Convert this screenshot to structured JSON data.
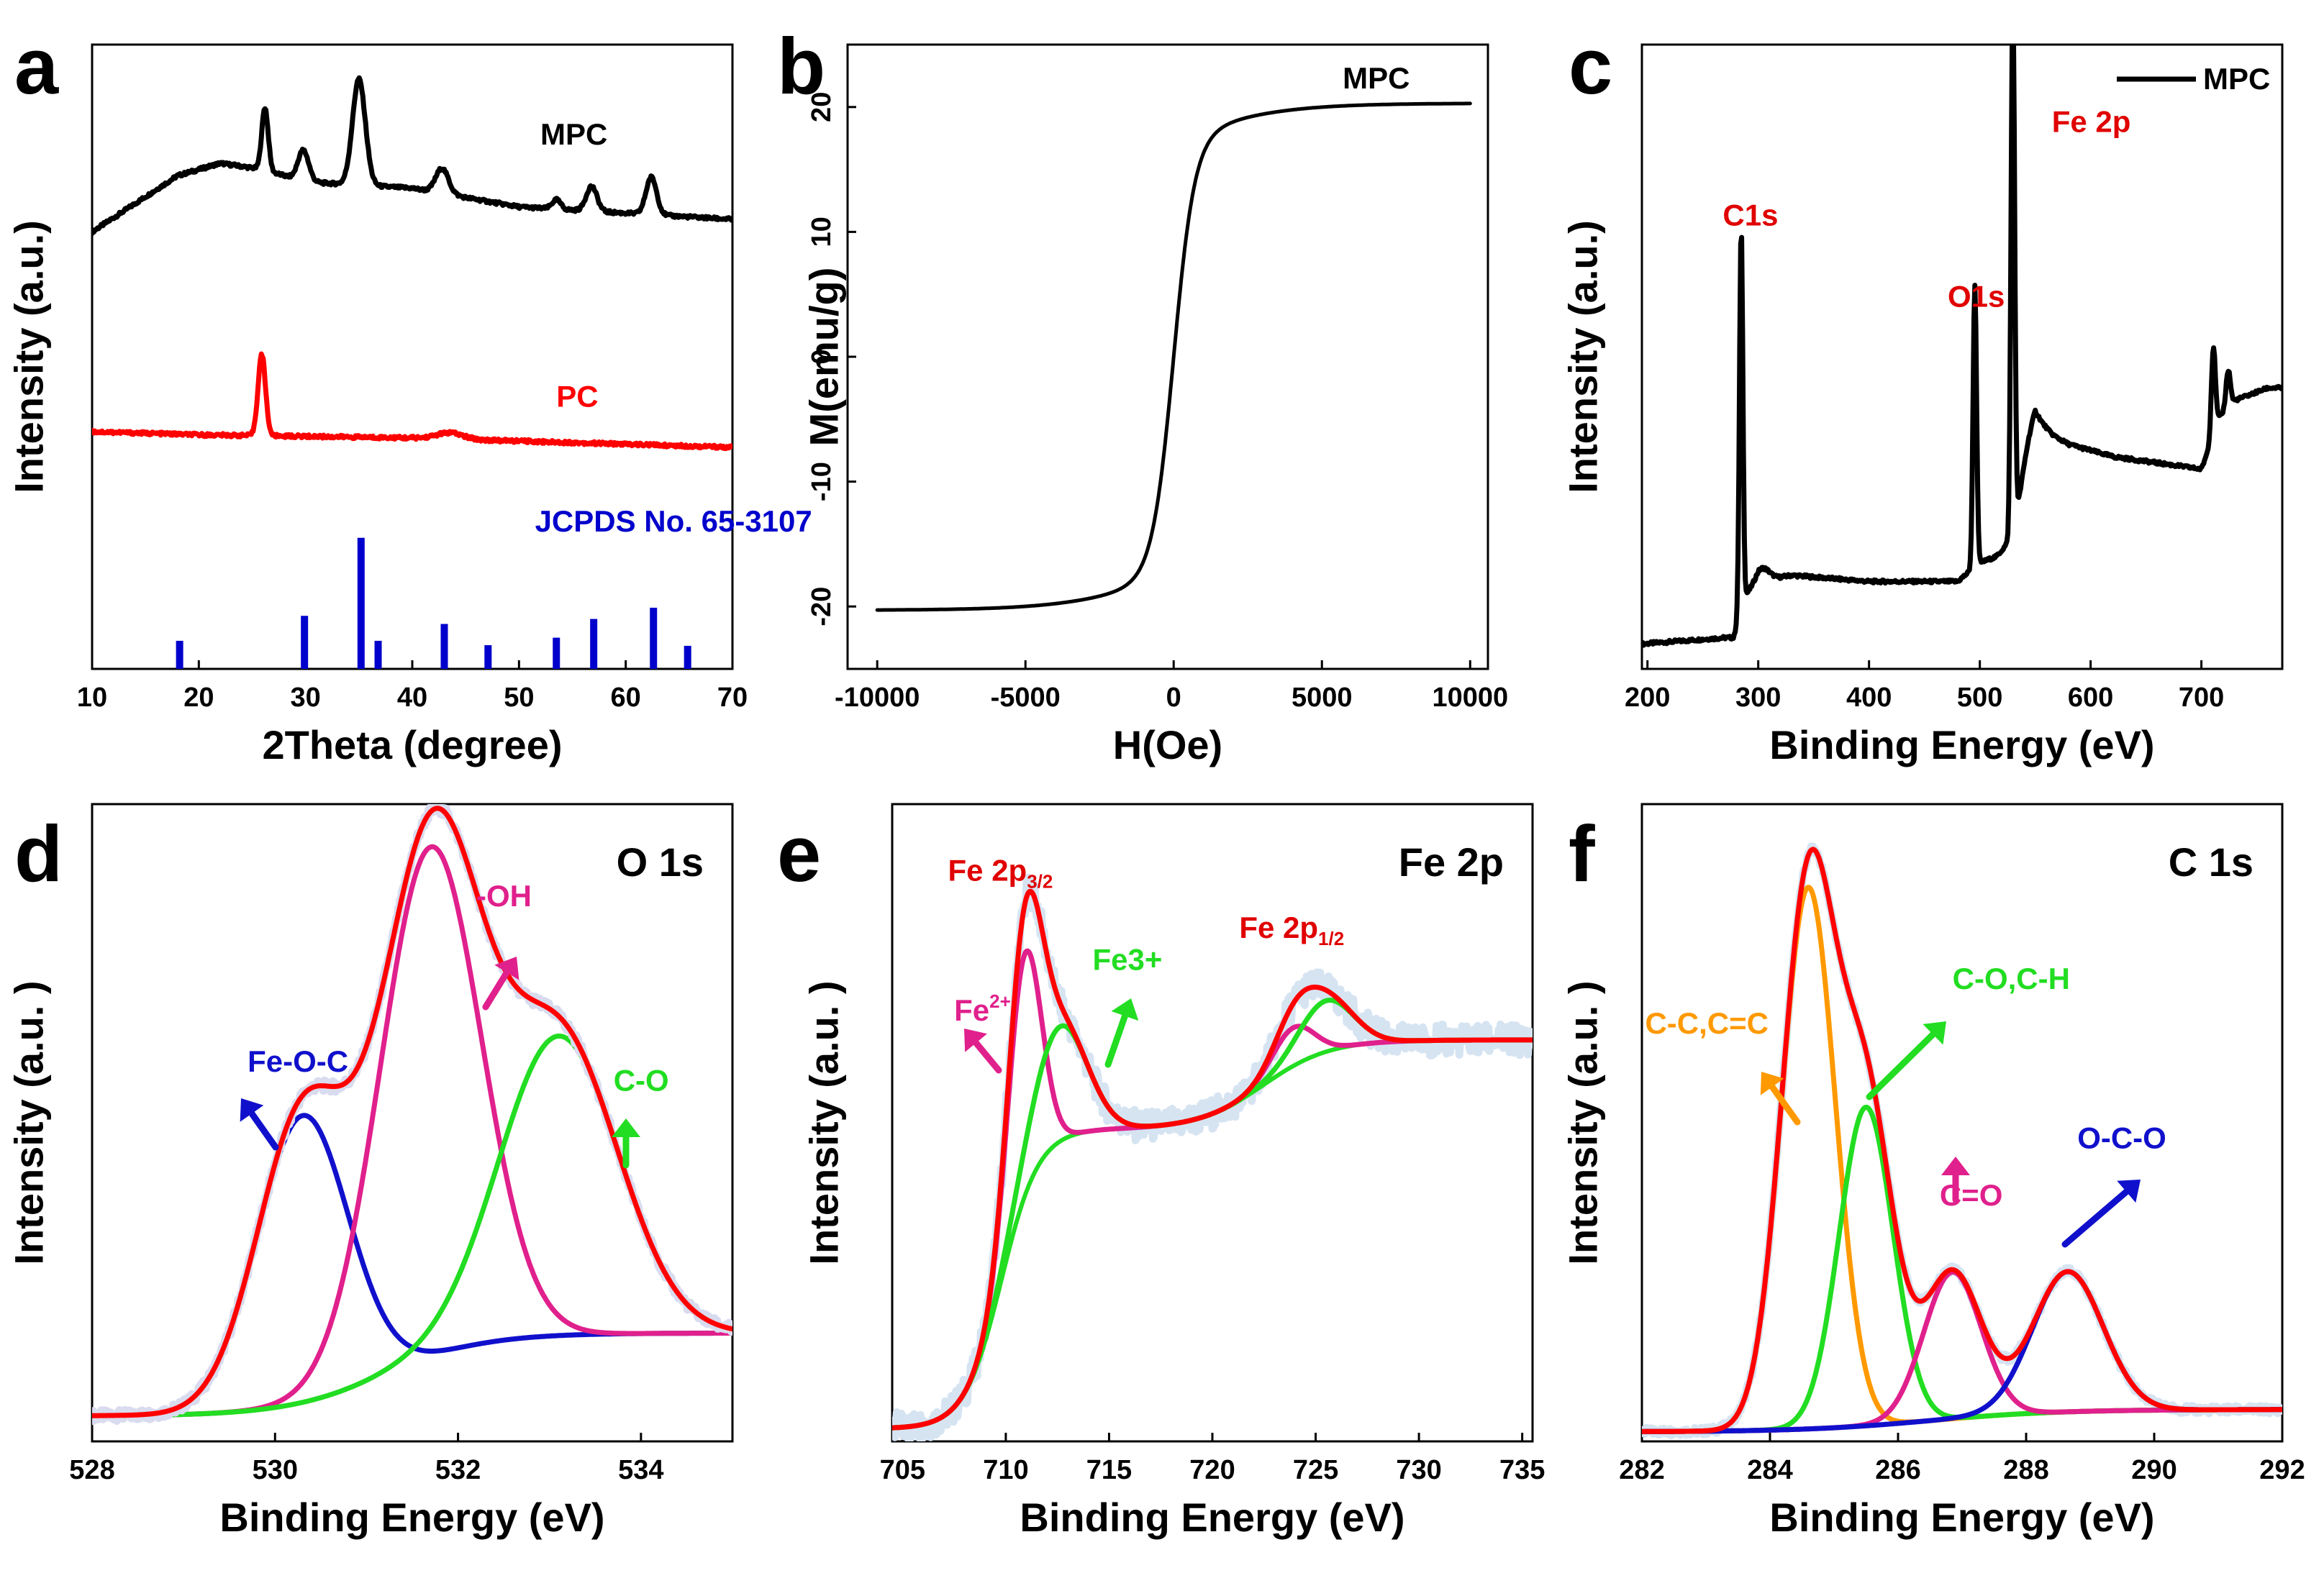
{
  "chart_data": [
    {
      "id": "a",
      "type": "line",
      "panel_label": "a",
      "xlabel": "2Theta (degree)",
      "ylabel": "Intensity (a.u.)",
      "xlim": [
        10,
        70
      ],
      "ylim": [
        0,
        100
      ],
      "xticks": [
        10,
        20,
        30,
        40,
        50,
        60,
        70
      ],
      "show_y_ticklabels": false,
      "series": [
        {
          "name": "MPC",
          "color": "#000000",
          "baseline": [
            [
              10,
              70
            ],
            [
              18,
              79
            ],
            [
              22,
              81
            ],
            [
              26,
              80
            ],
            [
              30,
              78
            ],
            [
              40,
              77
            ],
            [
              50,
              74
            ],
            [
              60,
              73
            ],
            [
              70,
              72
            ]
          ],
          "peaks": [
            [
              26.2,
              10,
              0.3
            ],
            [
              29.8,
              5,
              0.5
            ],
            [
              35.0,
              17,
              0.6
            ],
            [
              42.8,
              4,
              0.6
            ],
            [
              53.5,
              1.5,
              0.4
            ],
            [
              56.8,
              4,
              0.5
            ],
            [
              62.4,
              6,
              0.5
            ]
          ]
        },
        {
          "name": "PC",
          "color": "#ff0000",
          "baseline": [
            [
              10,
              38
            ],
            [
              20,
              37.5
            ],
            [
              40,
              37
            ],
            [
              70,
              35.5
            ]
          ],
          "peaks": [
            [
              25.9,
              13,
              0.35
            ],
            [
              43.5,
              1,
              1.2
            ]
          ]
        },
        {
          "name": "JCPDS No. 65-3107",
          "color": "#0000cc",
          "sticks": [
            [
              18.2,
              4.5
            ],
            [
              29.9,
              8.5
            ],
            [
              35.2,
              21
            ],
            [
              36.8,
              4.5
            ],
            [
              43.0,
              7.2
            ],
            [
              47.1,
              3.8
            ],
            [
              53.5,
              5
            ],
            [
              57.0,
              8
            ],
            [
              62.6,
              9.8
            ],
            [
              65.8,
              3.7
            ]
          ]
        }
      ],
      "annotations": [
        {
          "text": "MPC",
          "x": 52,
          "y": 84,
          "color": "#000000"
        },
        {
          "text": "PC",
          "x": 53.5,
          "y": 42,
          "color": "#ff0000"
        },
        {
          "text": "JCPDS No. 65-3107",
          "x": 51.5,
          "y": 22,
          "color": "#0000cc"
        }
      ]
    },
    {
      "id": "b",
      "type": "line",
      "panel_label": "b",
      "xlabel": "H(Oe)",
      "ylabel": "M(emu/g)",
      "xlim": [
        -11000,
        10600
      ],
      "ylim": [
        -25,
        25
      ],
      "xticks": [
        -10000,
        -5000,
        0,
        5000,
        10000
      ],
      "yticks": [
        -20,
        -10,
        0,
        10,
        20
      ],
      "series": [
        {
          "name": "MPC",
          "color": "#000000",
          "Ms": 20.3,
          "H0": 700,
          "sign": "tanh"
        }
      ],
      "annotations": [
        {
          "text": "MPC",
          "x": 5700,
          "y": 21.5,
          "color": "#000000"
        }
      ]
    },
    {
      "id": "c",
      "type": "line",
      "panel_label": "c",
      "xlabel": "Binding Energy (eV)",
      "ylabel": "Intensity (a.u.)",
      "xlim": [
        195,
        773
      ],
      "ylim": [
        0,
        100
      ],
      "xticks": [
        200,
        300,
        400,
        500,
        600,
        700
      ],
      "show_y_ticklabels": false,
      "legend": {
        "label": "MPC",
        "position": "top-right",
        "color": "#000000"
      },
      "series": [
        {
          "name": "MPC",
          "color": "#000000",
          "baseline": [
            [
              195,
              4
            ],
            [
              270,
              5
            ],
            [
              278,
              5
            ],
            [
              285,
              11
            ],
            [
              300,
              14
            ],
            [
              330,
              15
            ],
            [
              400,
              14
            ],
            [
              480,
              14
            ],
            [
              490,
              15.5
            ],
            [
              500,
              17
            ],
            [
              515,
              18
            ],
            [
              525,
              20
            ],
            [
              535,
              25
            ],
            [
              550,
              38
            ],
            [
              560,
              38
            ],
            [
              580,
              36
            ],
            [
              620,
              34
            ],
            [
              660,
              33
            ],
            [
              700,
              32
            ],
            [
              708,
              36
            ],
            [
              715,
              40
            ],
            [
              730,
              43
            ],
            [
              760,
              45
            ],
            [
              773,
              45
            ]
          ],
          "peaks": [
            [
              284.6,
              60,
              1.5
            ],
            [
              304,
              2,
              6
            ],
            [
              495.5,
              45,
              1.6
            ],
            [
              529.8,
              85,
              1.6
            ],
            [
              545,
              4,
              8
            ],
            [
              710.8,
              14,
              1.8
            ],
            [
              724.2,
              6,
              2
            ]
          ]
        }
      ],
      "annotations": [
        {
          "text": "C1s",
          "x": 268,
          "y": 71,
          "color": "#e00000"
        },
        {
          "text": "O1s",
          "x": 471,
          "y": 58,
          "color": "#e00000"
        },
        {
          "text": "Fe 2p",
          "x": 565,
          "y": 86,
          "color": "#e00000"
        }
      ]
    },
    {
      "id": "d",
      "type": "line",
      "panel_label": "d",
      "title": "O 1s",
      "xlabel": "Binding Energy (eV)",
      "ylabel": "Intensity (a.u. )",
      "xlim": [
        528,
        535
      ],
      "ylim": [
        0,
        100
      ],
      "xticks": [
        528,
        530,
        532,
        534
      ],
      "show_y_ticklabels": false,
      "series": [
        {
          "name": "Fe-O-C",
          "color": "#1010cc",
          "center": 530.3,
          "amplitude": 45,
          "width": 0.5,
          "bg": "shirley"
        },
        {
          "name": "-OH",
          "color": "#e0208c",
          "center": 531.7,
          "amplitude": 80,
          "width": 0.55,
          "bg": "shirley"
        },
        {
          "name": "C-O",
          "color": "#22dd22",
          "center": 533.1,
          "amplitude": 47,
          "width": 0.65,
          "bg": "shirley"
        },
        {
          "name": "Envelope",
          "color": "#ff0000",
          "envelope": true,
          "bg": "shirley"
        }
      ],
      "shirley": {
        "low": 4,
        "high": 17,
        "center": 531.2,
        "width": 0.55
      },
      "annotations": [
        {
          "text": "Fe-O-C",
          "x": 529.7,
          "y": 58,
          "color": "#1010cc"
        },
        {
          "text": "-OH",
          "x": 532.2,
          "y": 84,
          "color": "#e0208c"
        },
        {
          "text": "C-O",
          "x": 533.7,
          "y": 55,
          "color": "#22dd22"
        }
      ]
    },
    {
      "id": "e",
      "type": "line",
      "panel_label": "e",
      "title": "Fe 2p",
      "xlabel": "Binding Energy (eV)",
      "ylabel": "Intensity (a.u. )",
      "xlim": [
        704.5,
        735.5
      ],
      "ylim": [
        0,
        100
      ],
      "xticks": [
        705,
        710,
        715,
        720,
        725,
        730,
        735
      ],
      "show_y_ticklabels": false,
      "series": [
        {
          "name": "Fe2+",
          "color": "#e0208c",
          "center": 710.9,
          "amplitude": 38,
          "width": 0.8,
          "extra": [
            723.9,
            6,
            1.0
          ]
        },
        {
          "name": "Fe3+",
          "color": "#22dd22",
          "center": 712.6,
          "amplitude": 18,
          "width": 1.3,
          "extra": [
            725.5,
            8,
            1.3
          ]
        },
        {
          "name": "Envelope",
          "color": "#ff0000",
          "envelope": true
        }
      ],
      "background_steps": [
        [
          2,
          709.8,
          0.9,
          47
        ],
        [
          19,
          722.5,
          1.6,
          14
        ]
      ],
      "annotations": [
        {
          "text": "Fe 2p",
          "sub": "3/2",
          "x": 707.2,
          "y": 88,
          "color": "#e00000"
        },
        {
          "text": "Fe 2p",
          "sub": "1/2",
          "x": 721.3,
          "y": 79,
          "color": "#e00000"
        },
        {
          "text": "Fe",
          "sup": "2+",
          "x": 707.5,
          "y": 66,
          "color": "#e0208c"
        },
        {
          "text": "Fe3+",
          "x": 714.2,
          "y": 74,
          "color": "#22dd22"
        }
      ]
    },
    {
      "id": "f",
      "type": "line",
      "panel_label": "f",
      "title": "C 1s",
      "xlabel": "Binding Energy (eV)",
      "ylabel": "Intensity (a.u. )",
      "xlim": [
        282,
        292
      ],
      "ylim": [
        0,
        100
      ],
      "xticks": [
        282,
        284,
        286,
        288,
        290,
        292
      ],
      "show_y_ticklabels": false,
      "series": [
        {
          "name": "C-C,C=C",
          "color": "#ff9900",
          "center": 284.6,
          "amplitude": 85,
          "width": 0.42
        },
        {
          "name": "C-O,C-H",
          "color": "#22dd22",
          "center": 285.5,
          "amplitude": 50,
          "width": 0.42
        },
        {
          "name": "C=O",
          "color": "#e0208c",
          "center": 286.85,
          "amplitude": 23,
          "width": 0.45
        },
        {
          "name": "O-C-O",
          "color": "#1010cc",
          "center": 288.65,
          "amplitude": 22,
          "width": 0.55
        },
        {
          "name": "Envelope",
          "color": "#ff0000",
          "envelope": true
        }
      ],
      "background_steps": [
        [
          1.5,
          286.5,
          1.0,
          3.5
        ]
      ],
      "annotations": [
        {
          "text": "C-C,C=C",
          "x": 282.05,
          "y": 64,
          "color": "#ff9900"
        },
        {
          "text": "C-O,C-H",
          "x": 286.85,
          "y": 71,
          "color": "#22dd22"
        },
        {
          "text": "C=O",
          "x": 286.65,
          "y": 37,
          "color": "#e0208c"
        },
        {
          "text": "O-C-O",
          "x": 288.8,
          "y": 46,
          "color": "#1010cc"
        }
      ]
    }
  ]
}
